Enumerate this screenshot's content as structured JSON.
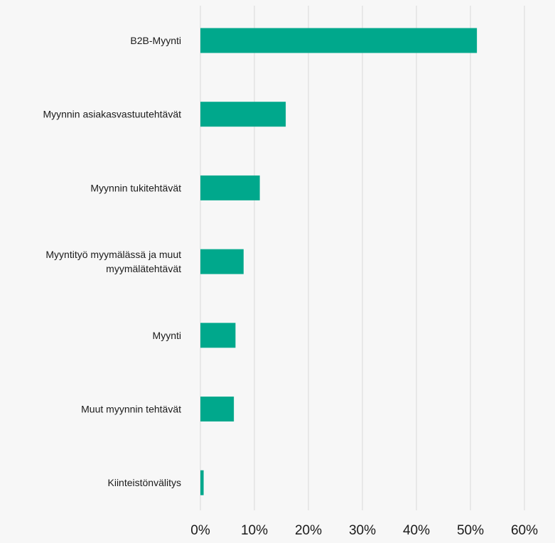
{
  "chart_data": {
    "type": "bar",
    "orientation": "horizontal",
    "title": "",
    "xlabel": "",
    "ylabel": "",
    "categories": [
      [
        "B2B-Myynti"
      ],
      [
        "Myynnin asiakasvastuutehtävät"
      ],
      [
        "Myynnin tukitehtävät"
      ],
      [
        "Myyntityö myymälässä ja muut",
        "myymälätehtävät"
      ],
      [
        "Myynti"
      ],
      [
        "Muut myynnin tehtävät"
      ],
      [
        "Kiinteistönvälitys"
      ]
    ],
    "values": [
      51.2,
      15.8,
      11.0,
      8.0,
      6.5,
      6.2,
      0.6
    ],
    "xlim": [
      0,
      60
    ],
    "xticks": [
      "0%",
      "10%",
      "20%",
      "30%",
      "40%",
      "50%",
      "60%"
    ],
    "grid": true,
    "bar_color": "#00a88c",
    "grid_color": "#d9d9d9",
    "text_color": "#1a1a1a"
  }
}
